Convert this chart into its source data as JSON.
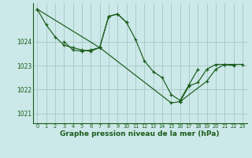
{
  "bg_color": "#cce8e8",
  "grid_color": "#aacccc",
  "line_color": "#1a5c1a",
  "xlabel": "Graphe pression niveau de la mer (hPa)",
  "xlabel_fontsize": 6.5,
  "ylim": [
    1020.6,
    1025.6
  ],
  "xlim": [
    -0.5,
    23.5
  ],
  "yticks": [
    1021,
    1022,
    1023,
    1024
  ],
  "xticks": [
    0,
    1,
    2,
    3,
    4,
    5,
    6,
    7,
    8,
    9,
    10,
    11,
    12,
    13,
    14,
    15,
    16,
    17,
    18,
    19,
    20,
    21,
    22,
    23
  ],
  "continuous_series": [
    {
      "x": [
        0,
        1,
        2,
        3,
        4,
        5,
        6,
        7,
        8,
        9,
        10,
        11,
        12,
        13,
        14,
        15,
        16,
        17,
        18
      ],
      "y": [
        1025.35,
        1024.7,
        1024.2,
        1023.85,
        1023.75,
        1023.65,
        1023.6,
        1023.75,
        1025.05,
        1025.15,
        1024.8,
        1024.1,
        1023.2,
        1022.75,
        1022.5,
        1021.8,
        1021.55,
        1022.2,
        1022.85
      ]
    },
    {
      "x": [
        7,
        8,
        9,
        10
      ],
      "y": [
        1023.75,
        1025.05,
        1025.15,
        1024.8
      ]
    },
    {
      "x": [
        3,
        4,
        5,
        6,
        7
      ],
      "y": [
        1024.0,
        1023.65,
        1023.6,
        1023.65,
        1023.75
      ]
    },
    {
      "x": [
        0,
        7,
        15,
        16,
        17,
        18,
        19,
        20,
        21,
        22
      ],
      "y": [
        1025.35,
        1023.75,
        1021.45,
        1021.5,
        1022.15,
        1022.3,
        1022.85,
        1023.05,
        1023.05,
        1023.0
      ]
    },
    {
      "x": [
        16,
        19,
        20,
        21,
        22,
        23
      ],
      "y": [
        1021.5,
        1022.35,
        1022.85,
        1023.05,
        1023.05,
        1023.05
      ]
    }
  ]
}
